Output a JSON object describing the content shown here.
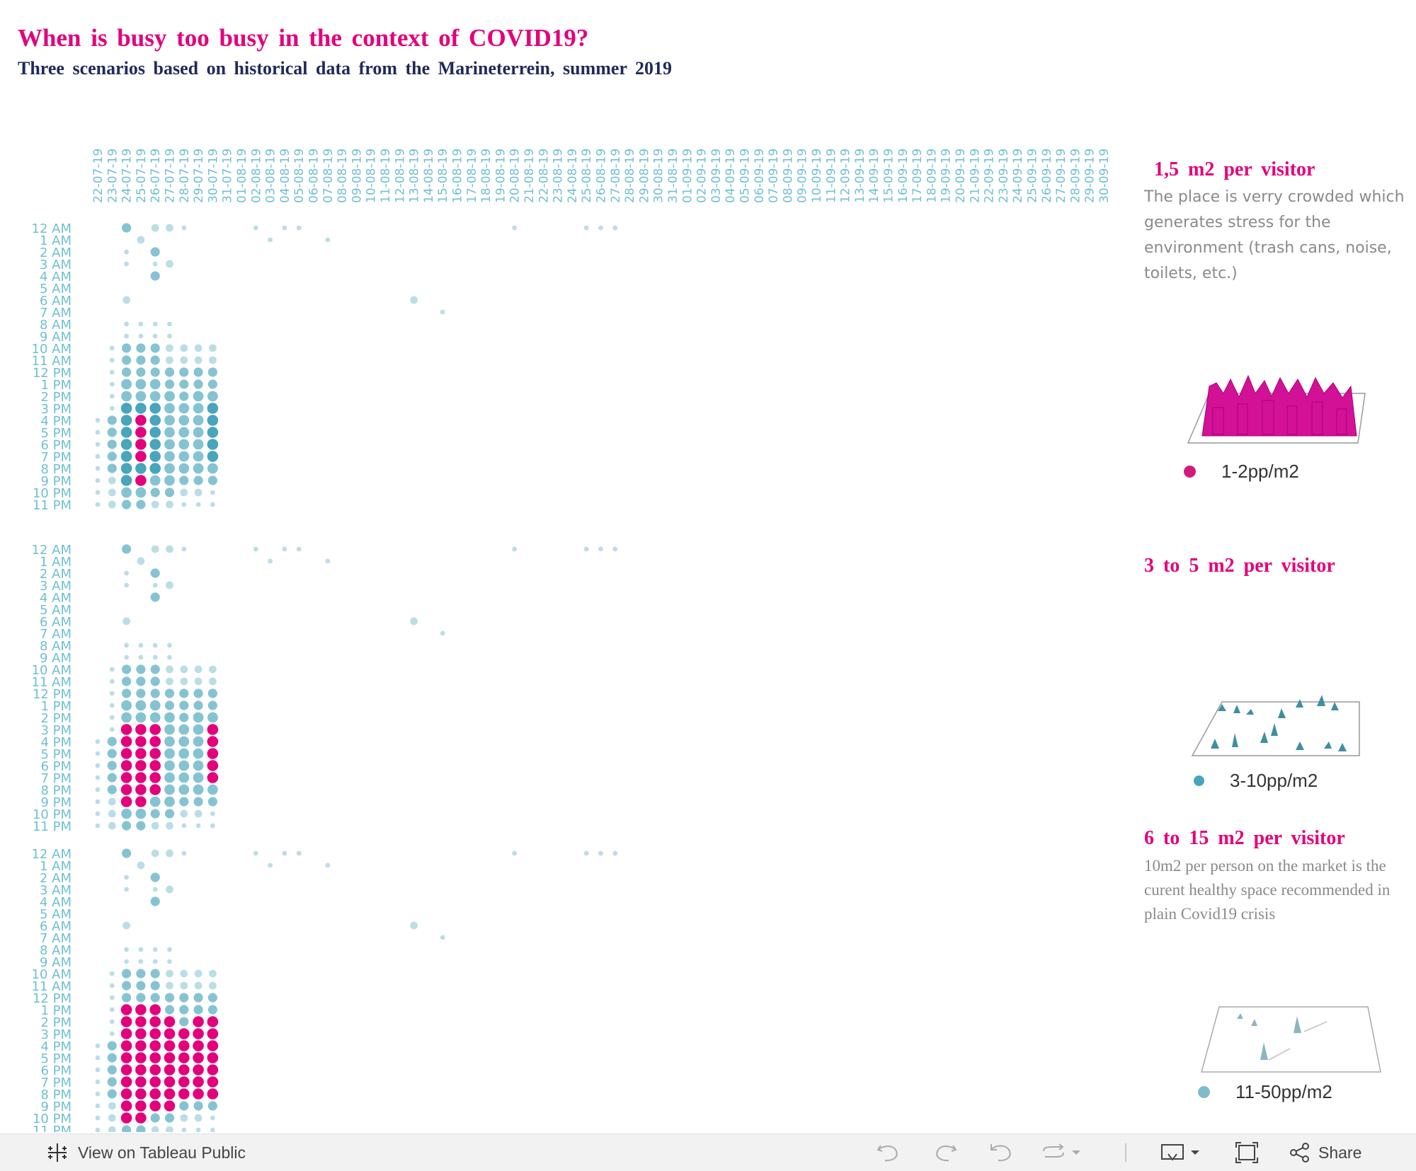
{
  "title": "When is busy too busy in the context of COVID19?",
  "subtitle": "Three scenarios based on historical data from the Marineterrein, summer 2019",
  "colors": {
    "pink": "#e3007b",
    "dark_teal": "#48a5bb",
    "mid_teal": "#86c3d2",
    "light_teal": "#bcdde5",
    "axis_text": "#6fbfd3",
    "navy": "#1f2a5a"
  },
  "panels": [
    {
      "title": "1,5  m2  per  visitor",
      "description": "The place is verry crowded which generates stress for the environment (trash cans, noise, toilets, etc.)",
      "legend_label": "1-2pp/m2",
      "legend_icon": "pink-dot",
      "illustration": "crowded-people-icon"
    },
    {
      "title": "3 to 5   m2  per  visitor",
      "description": "",
      "legend_label": "3-10pp/m2",
      "legend_icon": "teal-dot",
      "illustration": "scattered-people-icon"
    },
    {
      "title": "6  to  15  m2  per  visitor",
      "description": "10m2 per person on the market is the curent healthy space recommended in plain Covid19 crisis",
      "legend_label": "11-50pp/m2",
      "legend_icon": "light-teal-dot",
      "illustration": "sparse-people-icon"
    }
  ],
  "toolbar": {
    "view_on_label": "View on Tableau Public",
    "share_label": "Share",
    "icons": [
      "tableau-logo-icon",
      "undo-icon",
      "redo-icon",
      "revert-icon",
      "refresh-icon",
      "download-icon",
      "fullscreen-icon",
      "share-icon"
    ]
  },
  "chart_data": {
    "type": "scatter",
    "description": "Three dot-matrix heatmaps of visitor density by date (x) and hour of day (y); dot size and color encode the busyness category relative to each scenario's threshold.",
    "x_labels": [
      "22-07-19",
      "23-07-19",
      "24-07-19",
      "25-07-19",
      "26-07-19",
      "27-07-19",
      "28-07-19",
      "29-07-19",
      "30-07-19",
      "31-07-19",
      "01-08-19",
      "02-08-19",
      "03-08-19",
      "04-08-19",
      "05-08-19",
      "06-08-19",
      "07-08-19",
      "08-08-19",
      "09-08-19",
      "10-08-19",
      "11-08-19",
      "12-08-19",
      "13-08-19",
      "14-08-19",
      "15-08-19",
      "16-08-19",
      "17-08-19",
      "18-08-19",
      "19-08-19",
      "20-08-19",
      "21-08-19",
      "22-08-19",
      "23-08-19",
      "24-08-19",
      "25-08-19",
      "26-08-19",
      "27-08-19",
      "28-08-19",
      "29-08-19",
      "30-08-19",
      "31-08-19",
      "01-09-19",
      "02-09-19",
      "03-09-19",
      "04-09-19",
      "05-09-19",
      "06-09-19",
      "07-09-19",
      "08-09-19",
      "09-09-19",
      "10-09-19",
      "11-09-19",
      "12-09-19",
      "13-09-19",
      "14-09-19",
      "15-09-19",
      "16-09-19",
      "17-09-19",
      "18-09-19",
      "19-09-19",
      "20-09-19",
      "21-09-19",
      "22-09-19",
      "23-09-19",
      "24-09-19",
      "25-09-19",
      "26-09-19",
      "27-09-19",
      "28-09-19",
      "29-09-19",
      "30-09-19"
    ],
    "y_labels": [
      "12 AM",
      "1 AM",
      "2 AM",
      "3 AM",
      "4 AM",
      "5 AM",
      "6 AM",
      "7 AM",
      "8 AM",
      "9 AM",
      "10 AM",
      "11 AM",
      "12 PM",
      "1 PM",
      "2 PM",
      "3 PM",
      "4 PM",
      "5 PM",
      "6 PM",
      "7 PM",
      "8 PM",
      "9 PM",
      "10 PM",
      "11 PM"
    ],
    "level_scale": "0 = no data, 1 = very low, 2 = low, 3 = medium, 4 = high, 5 = peak",
    "scenarios": [
      {
        "name": "1,5 m2 per visitor",
        "threshold_level": 6
      },
      {
        "name": "3 to 5 m2 per visitor",
        "threshold_level": 5
      },
      {
        "name": "6 to 15 m2 per visitor",
        "threshold_level": 4
      }
    ],
    "rows": [
      "00302210000101100000000000000100001110000000000000000000000000000000000",
      "00020000000010001000000000000000000000000000000000000000000000000000000",
      "00103000000000000000000000000000000000000000000000000000000000000000000",
      "00101200000000000000000000000000000000000000000000000000000000000000000",
      "00003000000000000000000000000000000000000000000000000000000000000000000",
      "00000000000000000000000000000000000000000000000000000000000000000000000",
      "00200000000000000000002000000000000000000000000000000000000000000000000",
      "00000000000000000000000010000000000000000000000000000000000000000000000",
      "00111100000000000000000000000000000000000000000000000000000000000000000",
      "00111100000000000000000000000000000000000000000000000000000000000000000",
      "01333222200000000000000000000000000000000000000000000000000000000000000",
      "01333222200000000000000000000000000000000000000000000000000000000000000",
      "01333333300000000000000000000000000000000000000000000000000000000000000",
      "01444333300000000000000000000000000000000000000000000000000000000000000",
      "01444434400000000000000000000000000000000000000000000000000000000000000",
      "01555444500000000000000000000000000000000000000000000000000000000000000",
      "13565444500000000000000000000000000000000000000000000000000000000000000",
      "13565444500000000000000000000000000000000000000000000000000000000000000",
      "13565444500000000000000000000000000000000000000000000000000000000000000",
      "13565444500000000000000000000000000000000000000000000000000000000000000",
      "13555444400000000000000000000000000000000000000000000000000000000000000",
      "12564433300000000000000000000000000000000000000000000000000000000000000",
      "12443322100000000000000000000000000000000000000000000000000000000000000",
      "12332211100000000000000000000000000000000000000000000000000000000000000"
    ]
  }
}
